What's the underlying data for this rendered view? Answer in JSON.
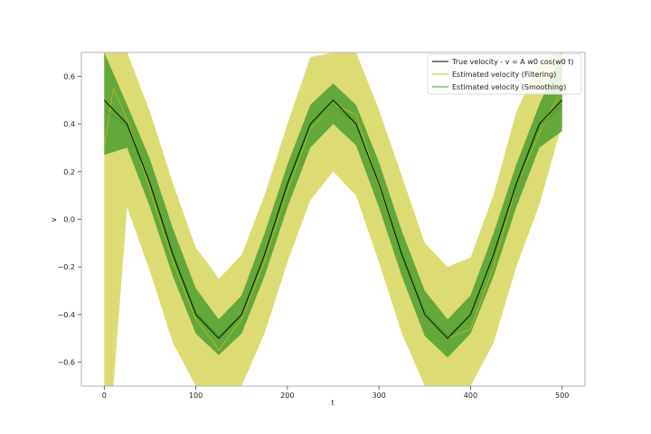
{
  "chart_data": {
    "type": "line",
    "title": "",
    "xlabel": "t",
    "ylabel": "v",
    "xlim": [
      -25,
      525
    ],
    "ylim": [
      -0.7,
      0.7
    ],
    "xticks": [
      0,
      100,
      200,
      300,
      400,
      500
    ],
    "xtick_labels": [
      "0",
      "100",
      "200",
      "300",
      "400",
      "500"
    ],
    "yticks": [
      -0.6,
      -0.4,
      -0.2,
      0.0,
      0.2,
      0.4,
      0.6
    ],
    "ytick_labels": [
      "−0.6",
      "−0.4",
      "−0.2",
      "0.0",
      "0.2",
      "0.4",
      "0.6"
    ],
    "grid": false,
    "legend_position": "top-right",
    "series": [
      {
        "name": "True velocity - v = A w0 cos(w0 t)",
        "color": "#000000",
        "x": [
          0,
          25,
          50,
          75,
          100,
          125,
          150,
          175,
          200,
          225,
          250,
          275,
          300,
          325,
          350,
          375,
          400,
          425,
          450,
          475,
          500
        ],
        "y": [
          0.5,
          0.4,
          0.15,
          -0.15,
          -0.4,
          -0.5,
          -0.4,
          -0.15,
          0.15,
          0.4,
          0.5,
          0.4,
          0.15,
          -0.15,
          -0.4,
          -0.5,
          -0.4,
          -0.15,
          0.15,
          0.4,
          0.5
        ]
      },
      {
        "name": "Estimated velocity (Filtering)",
        "color": "#bcbd22",
        "x": [
          0,
          10,
          25,
          50,
          75,
          100,
          120,
          125,
          150,
          175,
          200,
          225,
          250,
          275,
          300,
          325,
          350,
          375,
          400,
          425,
          450,
          475,
          500
        ],
        "y": [
          0.3,
          0.55,
          0.42,
          0.12,
          -0.18,
          -0.42,
          -0.52,
          -0.55,
          -0.42,
          -0.18,
          0.12,
          0.38,
          0.48,
          0.44,
          0.14,
          -0.15,
          -0.4,
          -0.5,
          -0.46,
          -0.2,
          0.14,
          0.36,
          0.55
        ],
        "band_lower": [
          -0.7,
          -0.7,
          0.05,
          -0.22,
          -0.52,
          -0.7,
          -0.7,
          -0.7,
          -0.7,
          -0.48,
          -0.18,
          0.08,
          0.2,
          0.1,
          -0.18,
          -0.48,
          -0.7,
          -0.7,
          -0.7,
          -0.52,
          -0.2,
          0.06,
          0.4
        ],
        "band_upper": [
          0.7,
          0.7,
          0.7,
          0.45,
          0.15,
          -0.12,
          -0.22,
          -0.25,
          -0.15,
          0.1,
          0.4,
          0.68,
          0.7,
          0.7,
          0.46,
          0.18,
          -0.1,
          -0.2,
          -0.16,
          0.1,
          0.45,
          0.66,
          0.7
        ]
      },
      {
        "name": "Estimated velocity (Smoothing)",
        "color": "#2ca02c",
        "x": [
          0,
          25,
          50,
          75,
          100,
          125,
          150,
          175,
          200,
          225,
          250,
          275,
          300,
          325,
          350,
          375,
          400,
          425,
          450,
          475,
          500
        ],
        "y": [
          0.46,
          0.39,
          0.15,
          -0.14,
          -0.39,
          -0.49,
          -0.4,
          -0.15,
          0.14,
          0.39,
          0.48,
          0.4,
          0.15,
          -0.14,
          -0.39,
          -0.49,
          -0.4,
          -0.15,
          0.14,
          0.39,
          0.48
        ],
        "band_lower": [
          0.27,
          0.3,
          0.05,
          -0.24,
          -0.48,
          -0.57,
          -0.48,
          -0.24,
          0.05,
          0.3,
          0.4,
          0.31,
          0.05,
          -0.24,
          -0.49,
          -0.58,
          -0.48,
          -0.24,
          0.05,
          0.3,
          0.37
        ],
        "band_upper": [
          0.7,
          0.48,
          0.25,
          -0.04,
          -0.29,
          -0.42,
          -0.32,
          -0.06,
          0.23,
          0.48,
          0.57,
          0.48,
          0.24,
          -0.05,
          -0.3,
          -0.42,
          -0.32,
          -0.06,
          0.23,
          0.48,
          0.7
        ]
      }
    ]
  }
}
